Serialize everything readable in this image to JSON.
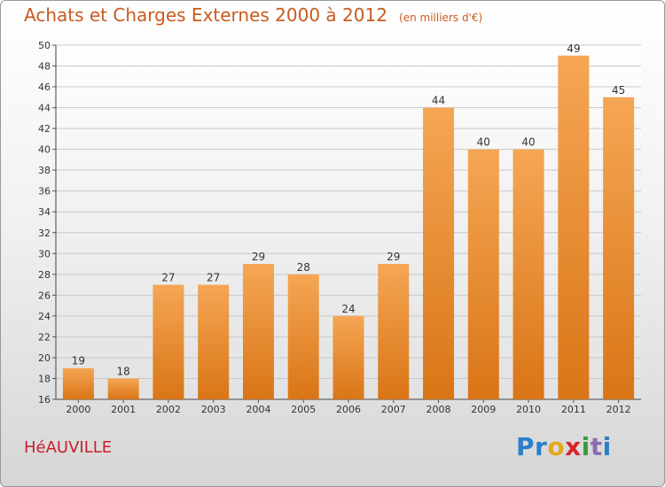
{
  "chart_data": {
    "type": "bar",
    "title": "Achats et Charges Externes 2000 à 2012",
    "subtitle": "(en milliers d'€)",
    "categories": [
      "2000",
      "2001",
      "2002",
      "2003",
      "2004",
      "2005",
      "2006",
      "2007",
      "2008",
      "2009",
      "2010",
      "2011",
      "2012"
    ],
    "values": [
      19,
      18,
      27,
      27,
      29,
      28,
      24,
      29,
      44,
      40,
      40,
      49,
      45
    ],
    "ylim": [
      16,
      50
    ],
    "yticks": [
      16,
      18,
      20,
      22,
      24,
      26,
      28,
      30,
      32,
      34,
      36,
      38,
      40,
      42,
      44,
      46,
      48,
      50
    ],
    "grid": true,
    "legend": "none",
    "bar_color_top": "#f5a655",
    "bar_color_bottom": "#d97516"
  },
  "commune": "HéAUVILLE",
  "logo": {
    "letters": [
      "P",
      "r",
      "o",
      "x",
      "i",
      "t",
      "i"
    ],
    "colors": [
      "#2a7fc9",
      "#2a7fc9",
      "#e0a81e",
      "#d8252a",
      "#3a9b3c",
      "#8c6bb0",
      "#2a7fc9"
    ]
  }
}
